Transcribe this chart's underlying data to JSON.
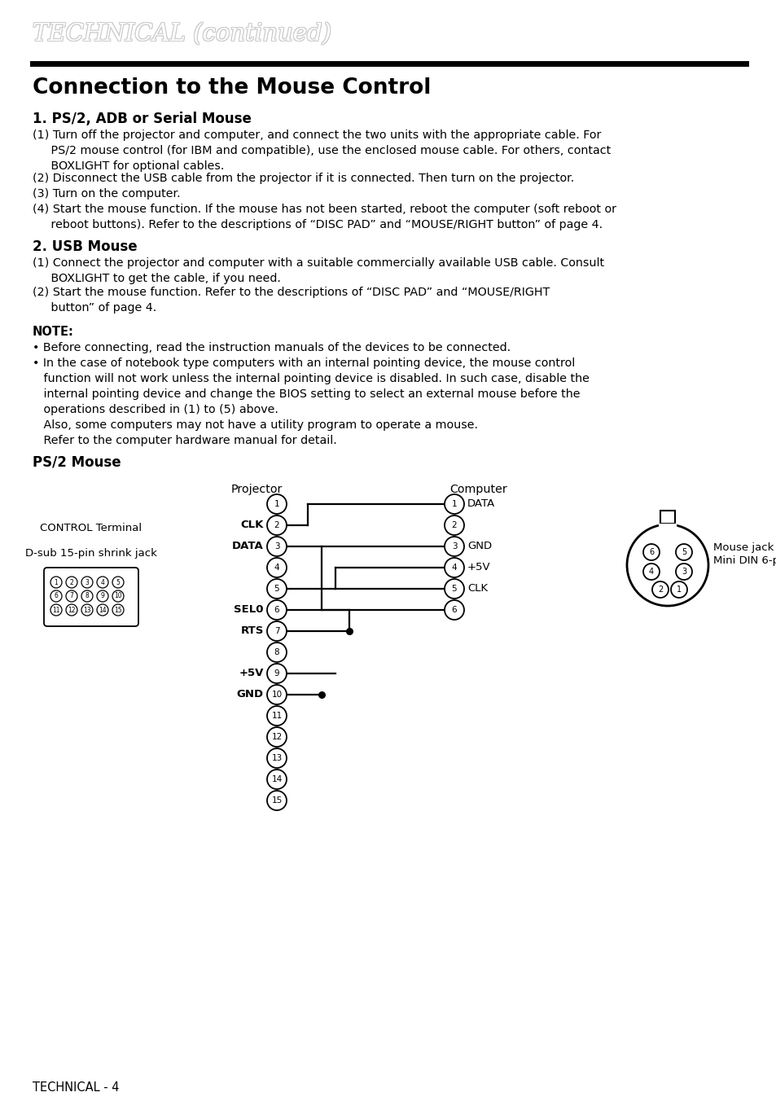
{
  "page_bg": "#ffffff",
  "title_italic": "TECHNICAL (continued)",
  "section_title": "Connection to the Mouse Control",
  "sub1_title": "1. PS/2, ADB or Serial Mouse",
  "sub1_items": [
    "(1) Turn off the projector and computer, and connect the two units with the appropriate cable. For\n     PS/2 mouse control (for IBM and compatible), use the enclosed mouse cable. For others, contact\n     BOXLIGHT for optional cables.",
    "(2) Disconnect the USB cable from the projector if it is connected. Then turn on the projector.",
    "(3) Turn on the computer.",
    "(4) Start the mouse function. If the mouse has not been started, reboot the computer (soft reboot or\n     reboot buttons). Refer to the descriptions of “DISC PAD” and “MOUSE/RIGHT button” of page 4."
  ],
  "sub2_title": "2. USB Mouse",
  "sub2_items": [
    "(1) Connect the projector and computer with a suitable commercially available USB cable. Consult\n     BOXLIGHT to get the cable, if you need.",
    "(2) Start the mouse function. Refer to the descriptions of “DISC PAD” and “MOUSE/RIGHT\n     button” of page 4."
  ],
  "note_title": "NOTE:",
  "note_items": [
    "• Before connecting, read the instruction manuals of the devices to be connected.",
    "• In the case of notebook type computers with an internal pointing device, the mouse control\n   function will not work unless the internal pointing device is disabled. In such case, disable the\n   internal pointing device and change the BIOS setting to select an external mouse before the\n   operations described in (1) to (5) above.\n   Also, some computers may not have a utility program to operate a mouse.\n   Refer to the computer hardware manual for detail."
  ],
  "diagram_title": "PS/2 Mouse",
  "footer": "TECHNICAL - 4",
  "proj_labels": {
    "2": "CLK",
    "3": "DATA",
    "6": "SEL0",
    "7": "RTS",
    "9": "+5V",
    "10": "GND"
  },
  "comp_labels": {
    "1": "DATA",
    "3": "GND",
    "4": "+5V",
    "5": "CLK"
  }
}
